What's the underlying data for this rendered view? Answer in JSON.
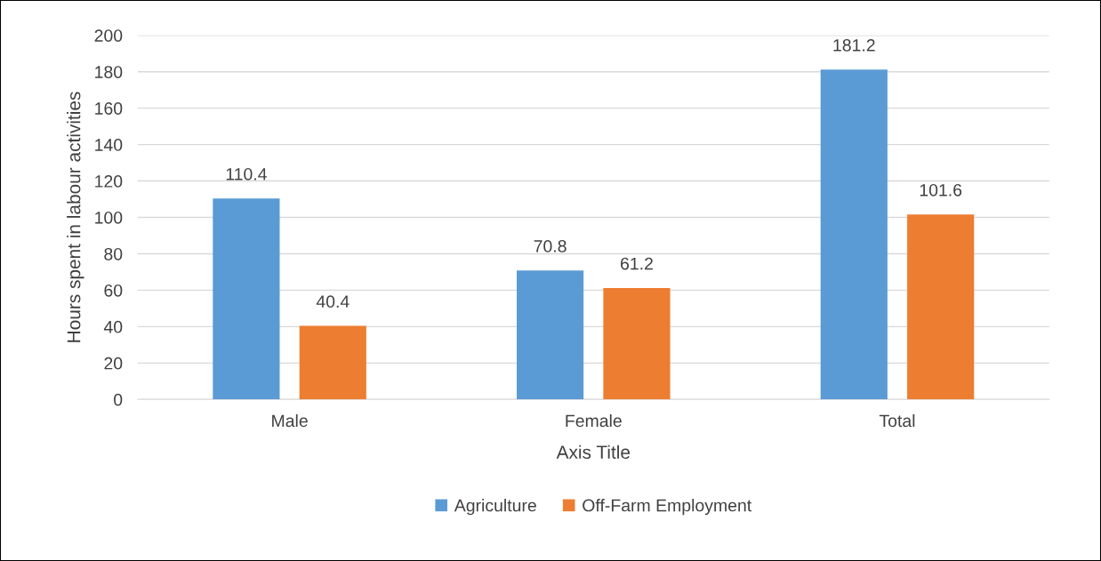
{
  "chart_data": {
    "type": "bar",
    "xlabel": "Axis Title",
    "ylabel": "Hours spent in labour activities",
    "categories": [
      "Male",
      "Female",
      "Total"
    ],
    "series": [
      {
        "name": "Agriculture",
        "color": "#5b9bd5",
        "values": [
          110.4,
          70.8,
          181.2
        ]
      },
      {
        "name": "Off-Farm Employment",
        "color": "#ed7d31",
        "values": [
          40.4,
          61.2,
          101.6
        ]
      }
    ],
    "ylim": [
      0,
      200
    ],
    "yticks": [
      0,
      20,
      40,
      60,
      80,
      100,
      120,
      140,
      160,
      180,
      200
    ],
    "grid": "y",
    "legend": "bottom",
    "data_labels": true
  }
}
